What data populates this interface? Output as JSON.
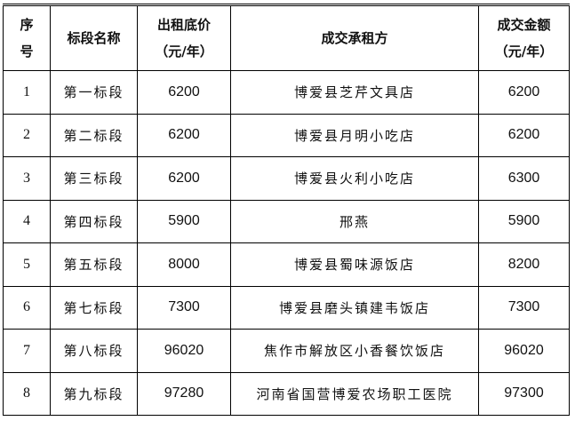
{
  "headers": {
    "seq": "序号",
    "segment": "标段名称",
    "base_price_line1": "出租底价",
    "base_price_line2": "（元/年）",
    "lessee": "成交承租方",
    "deal_line1": "成交金额",
    "deal_line2": "（元/年）"
  },
  "rows": [
    {
      "seq": "1",
      "segment": "第一标段",
      "base_price": "6200",
      "lessee": "博爱县芝芹文具店",
      "deal": "6200"
    },
    {
      "seq": "2",
      "segment": "第二标段",
      "base_price": "6200",
      "lessee": "博爱县月明小吃店",
      "deal": "6200"
    },
    {
      "seq": "3",
      "segment": "第三标段",
      "base_price": "6200",
      "lessee": "博爱县火利小吃店",
      "deal": "6300"
    },
    {
      "seq": "4",
      "segment": "第四标段",
      "base_price": "5900",
      "lessee": "邢燕",
      "deal": "5900"
    },
    {
      "seq": "5",
      "segment": "第五标段",
      "base_price": "8000",
      "lessee": "博爱县蜀味源饭店",
      "deal": "8200"
    },
    {
      "seq": "6",
      "segment": "第七标段",
      "base_price": "7300",
      "lessee": "博爱县磨头镇建韦饭店",
      "deal": "7300"
    },
    {
      "seq": "7",
      "segment": "第八标段",
      "base_price": "96020",
      "lessee": "焦作市解放区小香餐饮饭店",
      "deal": "96020"
    },
    {
      "seq": "8",
      "segment": "第九标段",
      "base_price": "97280",
      "lessee": "河南省国营博爱农场职工医院",
      "deal": "97300"
    }
  ]
}
